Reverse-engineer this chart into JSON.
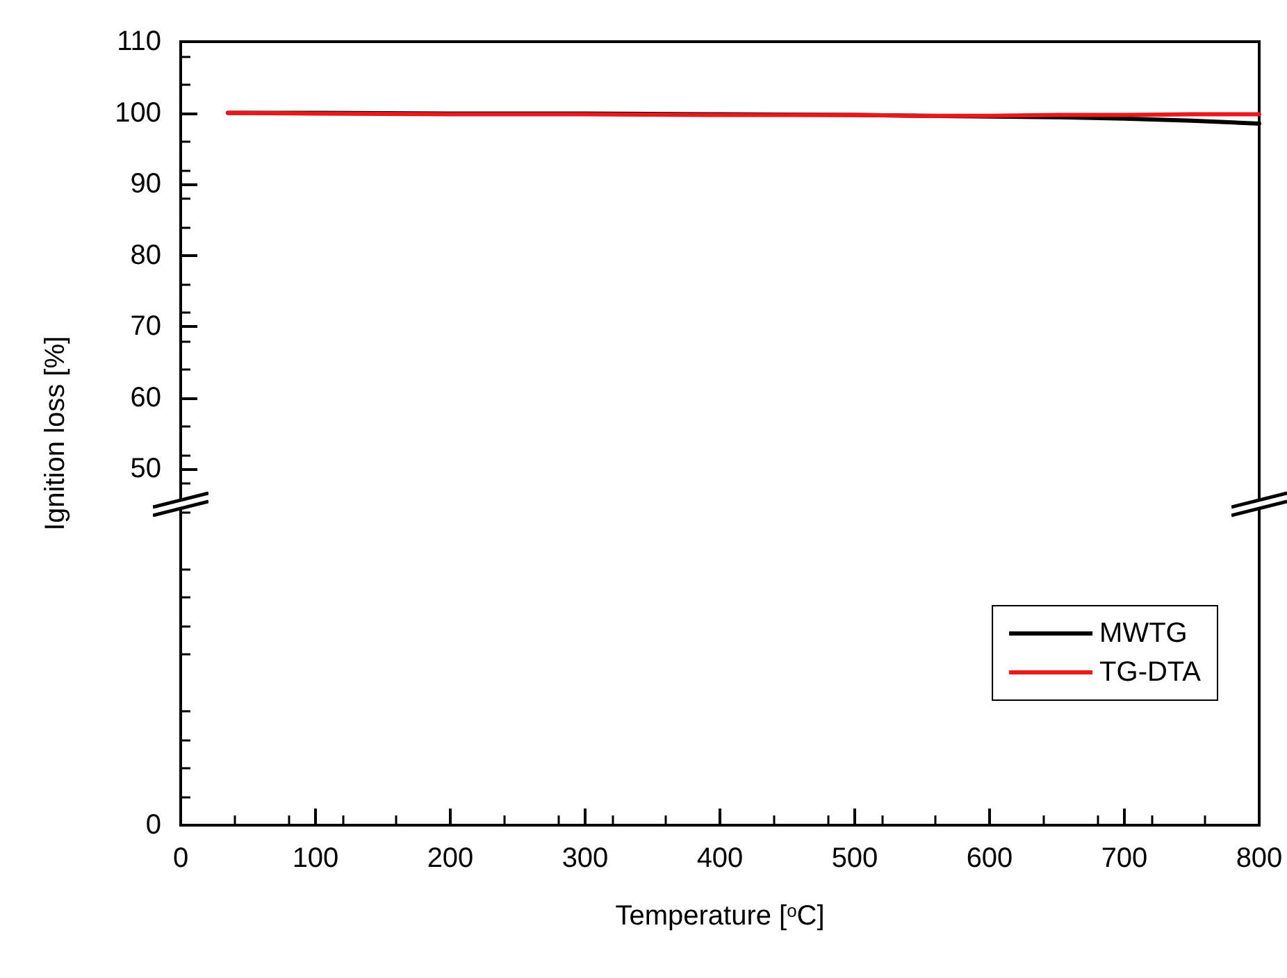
{
  "chart_data": {
    "type": "line",
    "xlabel": "Temperature [$^{o}$C]",
    "ylabel": "Ignition loss [%]",
    "xlim": [
      0,
      800
    ],
    "xticks": [
      0,
      100,
      200,
      300,
      400,
      500,
      600,
      700,
      800
    ],
    "ylim": [
      0,
      110
    ],
    "yticks": [
      0,
      50,
      60,
      70,
      80,
      90,
      100,
      110
    ],
    "grid": false,
    "legend": "bottom right",
    "marker": "none",
    "line_style": "solid",
    "series": [
      {
        "name": "MWTG",
        "color": "#000000",
        "x": [
          35,
          100,
          200,
          300,
          400,
          500,
          550,
          600,
          650,
          700,
          750,
          800
        ],
        "values": [
          100,
          100,
          99.9,
          99.9,
          99.8,
          99.7,
          99.6,
          99.5,
          99.4,
          99.2,
          98.9,
          98.5
        ]
      },
      {
        "name": "TG-DTA",
        "color": "#e8191c",
        "x": [
          35,
          100,
          200,
          300,
          400,
          500,
          550,
          600,
          650,
          700,
          750,
          800
        ],
        "values": [
          100,
          99.9,
          99.8,
          99.8,
          99.7,
          99.7,
          99.6,
          99.6,
          99.7,
          99.7,
          99.8,
          99.8
        ]
      }
    ]
  }
}
